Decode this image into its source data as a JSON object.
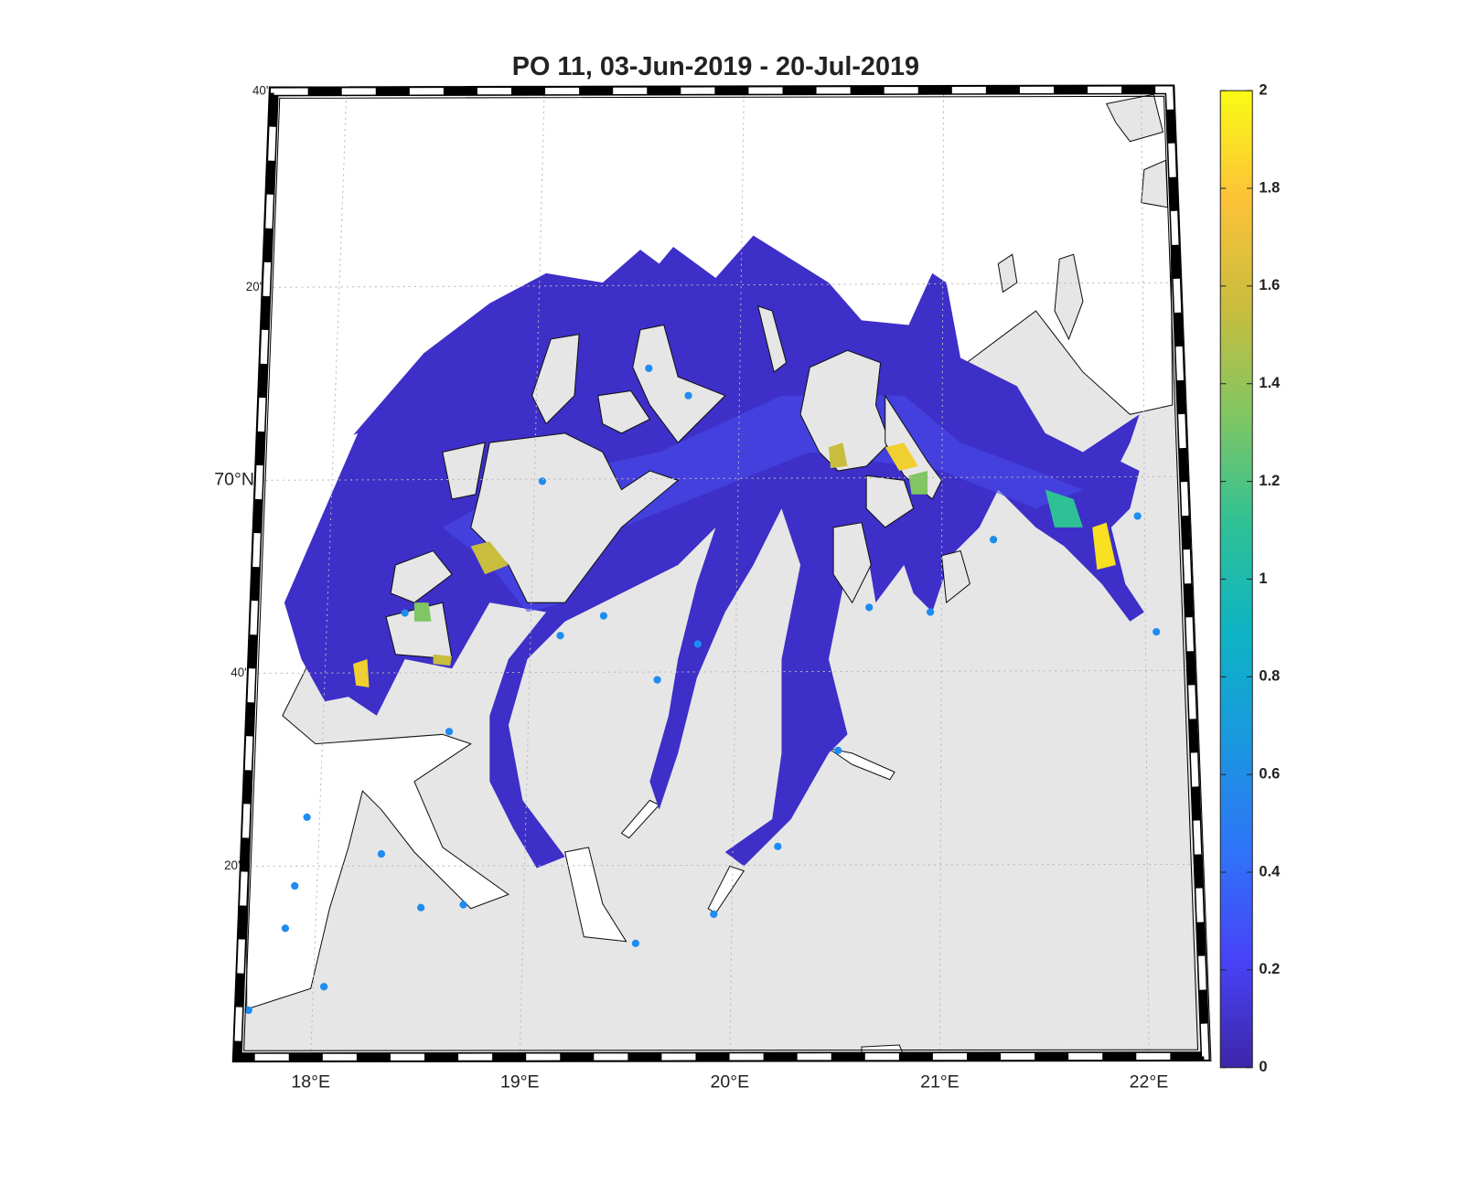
{
  "chart_data": {
    "type": "map",
    "title": "PO 11, 03-Jun-2019  - 20-Jul-2019",
    "lon_labels": [
      "18°E",
      "19°E",
      "20°E",
      "21°E",
      "22°E"
    ],
    "lat_labels": [
      "40'",
      "20'",
      "70°N",
      "40'",
      "20'"
    ],
    "colorbar": {
      "lim": [
        0,
        2
      ],
      "ticks": [
        0,
        0.2,
        0.4,
        0.6,
        0.8,
        1,
        1.2,
        1.4,
        1.6,
        1.8,
        2
      ],
      "colormap": [
        "#3e26a8",
        "#4743f8",
        "#2f74f8",
        "#1a98df",
        "#0eb3c4",
        "#2fc196",
        "#80c663",
        "#c9bd3e",
        "#fcc238",
        "#f9fb15"
      ]
    }
  }
}
